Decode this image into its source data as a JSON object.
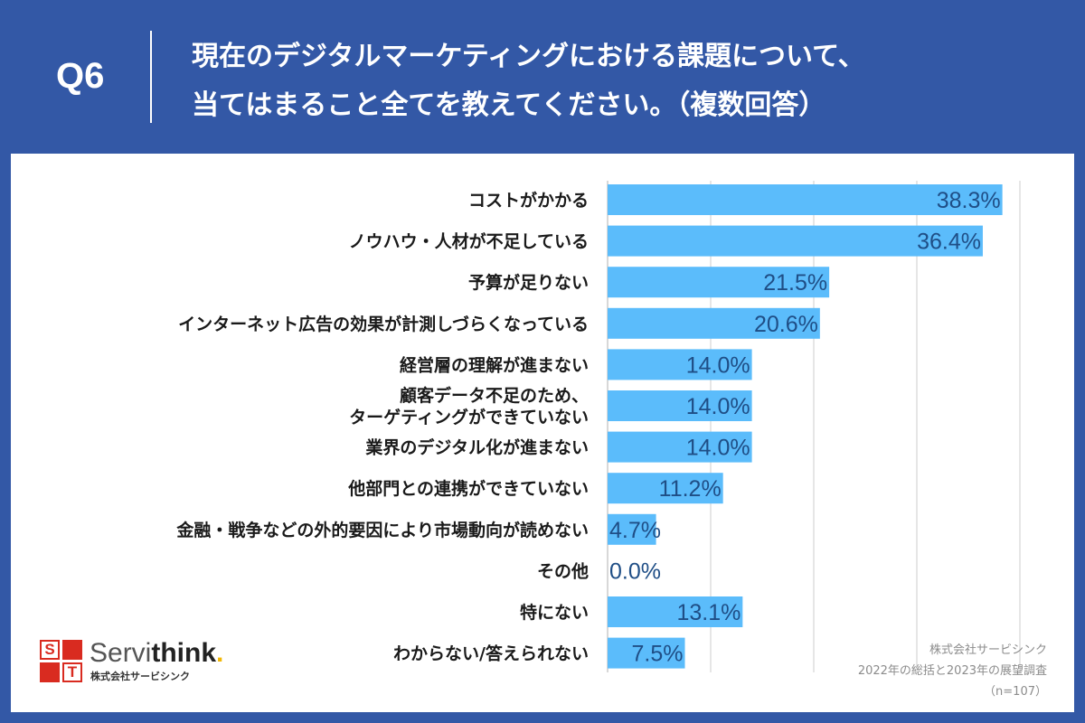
{
  "header": {
    "question_number": "Q6",
    "title_line1": "現在のデジタルマーケティングにおける課題について、",
    "title_line2": "当てはまること全てを教えてください。（複数回答）"
  },
  "colors": {
    "background": "#3358a6",
    "bar": "#5bbcfb",
    "value_text": "#1f4e86",
    "logo_red": "#d92b20",
    "logo_dot": "#f2b705"
  },
  "chart_data": {
    "type": "bar",
    "orientation": "horizontal",
    "categories": [
      "コストがかかる",
      "ノウハウ・人材が不足している",
      "予算が足りない",
      "インターネット広告の効果が計測しづらくなっている",
      "経営層の理解が進まない",
      "顧客データ不足のため、\nターゲティングができていない",
      "業界のデジタル化が進まない",
      "他部門との連携ができていない",
      "金融・戦争などの外的要因により市場動向が読めない",
      "その他",
      "特にない",
      "わからない/答えられない"
    ],
    "values": [
      38.3,
      36.4,
      21.5,
      20.6,
      14.0,
      14.0,
      14.0,
      11.2,
      4.7,
      0.0,
      13.1,
      7.5
    ],
    "value_labels": [
      "38.3%",
      "36.4%",
      "21.5%",
      "20.6%",
      "14.0%",
      "14.0%",
      "14.0%",
      "11.2%",
      "4.7%",
      "0.0%",
      "13.1%",
      "7.5%"
    ],
    "xlim": [
      0,
      40
    ],
    "grid": true
  },
  "logo": {
    "letters": [
      "S",
      "T"
    ],
    "name_regular": "Servi",
    "name_bold": "think",
    "name_dot": ".",
    "subtitle": "株式会社サービシンク"
  },
  "source": {
    "line1": "株式会社サービシンク",
    "line2": "2022年の総括と2023年の展望調査",
    "line3": "（n=107）"
  }
}
